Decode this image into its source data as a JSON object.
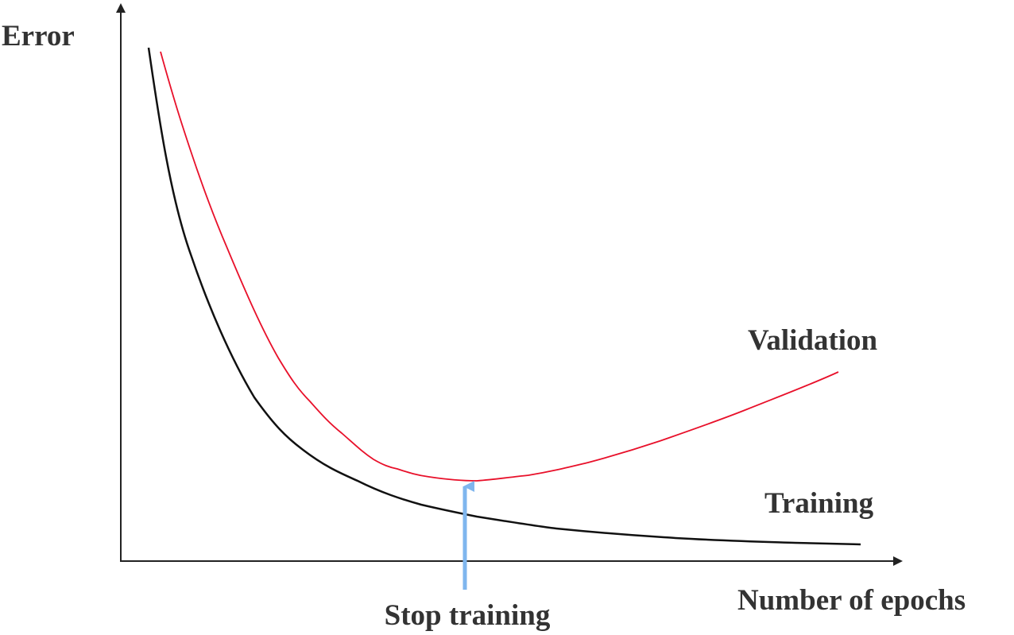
{
  "axes": {
    "y_label": "Error",
    "x_label": "Number of epochs"
  },
  "curves": [
    {
      "label": "Validation"
    },
    {
      "label": "Training"
    }
  ],
  "annotation": {
    "label": "Stop training"
  }
}
